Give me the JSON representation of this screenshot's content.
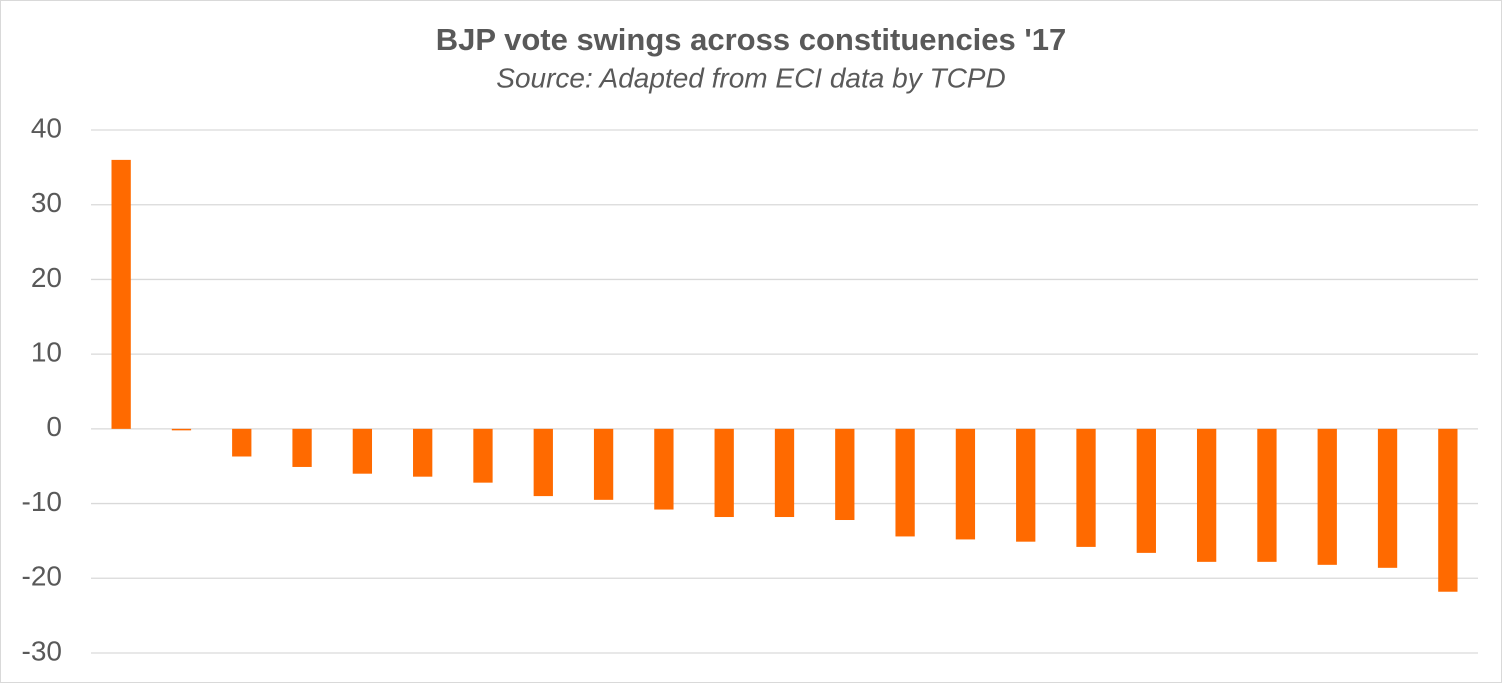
{
  "chart_data": {
    "type": "bar",
    "title": "BJP vote swings across constituencies '17",
    "subtitle": "Source: Adapted from ECI data by TCPD",
    "categories": [
      null,
      null,
      null,
      null,
      null,
      null,
      null,
      null,
      null,
      null,
      null,
      null,
      null,
      null,
      null,
      null,
      null,
      null,
      null,
      null,
      null,
      null,
      null
    ],
    "values": [
      36,
      -0.2,
      -3.7,
      -5.1,
      -6.0,
      -6.4,
      -7.2,
      -9.0,
      -9.5,
      -10.8,
      -11.8,
      -11.8,
      -12.2,
      -14.4,
      -14.8,
      -15.1,
      -15.8,
      -16.6,
      -17.8,
      -17.8,
      -18.2,
      -18.6,
      -21.8
    ],
    "color": "#ff6a00",
    "ylim": [
      -30,
      40
    ],
    "yticks": [
      -30,
      -20,
      -10,
      0,
      10,
      20,
      30,
      40
    ],
    "grid": true
  }
}
